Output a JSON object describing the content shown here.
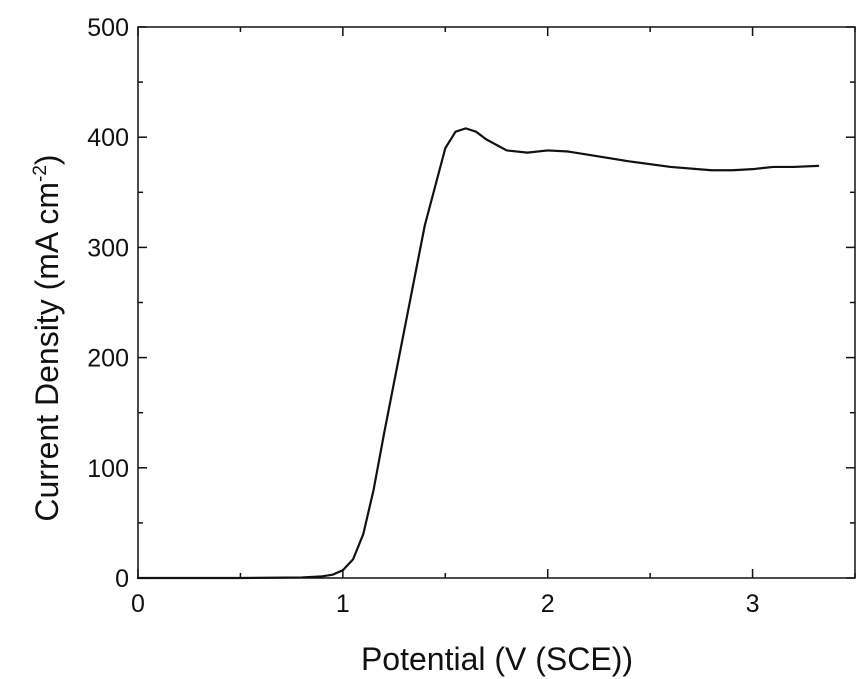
{
  "chart_data": {
    "type": "line",
    "title": "",
    "xlabel": "Potential (V (SCE))",
    "ylabel": {
      "main": "Current Density (mA cm",
      "superscript": "-2",
      "close": ")"
    },
    "xlim": [
      0,
      3.5
    ],
    "ylim": [
      0,
      500
    ],
    "xticks": [
      0,
      1,
      2,
      3
    ],
    "xtick_labels": [
      "0",
      "1",
      "2",
      "3"
    ],
    "yticks": [
      0,
      100,
      200,
      300,
      400,
      500
    ],
    "ytick_labels": [
      "0",
      "100",
      "200",
      "300",
      "400",
      "500"
    ],
    "grid": false,
    "legend": "none",
    "line_color": "#111111",
    "series": [
      {
        "x": [
          0,
          0.5,
          0.8,
          0.9,
          0.95,
          1.0,
          1.05,
          1.1,
          1.15,
          1.2,
          1.3,
          1.4,
          1.5,
          1.55,
          1.6,
          1.65,
          1.7,
          1.8,
          1.9,
          2.0,
          2.1,
          2.2,
          2.4,
          2.6,
          2.8,
          2.9,
          3.0,
          3.1,
          3.2,
          3.32
        ],
        "y": [
          0,
          0,
          0.5,
          1.5,
          3,
          7,
          17,
          40,
          80,
          130,
          225,
          320,
          390,
          405,
          408,
          405,
          398,
          388,
          386,
          388,
          387,
          384,
          378,
          373,
          370,
          370,
          371,
          373,
          373,
          374
        ]
      }
    ]
  }
}
